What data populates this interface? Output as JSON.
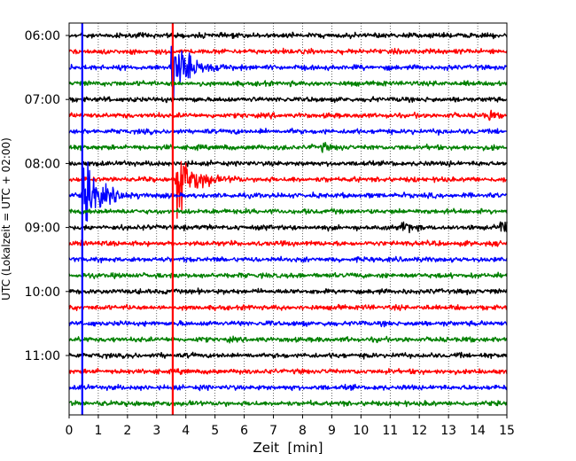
{
  "chart_data": {
    "type": "line",
    "title": "",
    "xlabel": "Zeit  [min]",
    "ylabel": "UTC (Lokalzeit = UTC + 02:00)",
    "xlim": [
      0,
      15
    ],
    "xticks": [
      "0",
      "1",
      "2",
      "3",
      "4",
      "5",
      "6",
      "7",
      "8",
      "9",
      "10",
      "11",
      "12",
      "13",
      "14",
      "15"
    ],
    "yticks": [
      "06:00",
      "07:00",
      "08:00",
      "09:00",
      "10:00",
      "11:00"
    ],
    "grid": "vertical dotted",
    "trace_color_cycle": [
      "#000000",
      "#ff0000",
      "#0000ff",
      "#008000"
    ],
    "trace_start_times": [
      "06:00",
      "06:15",
      "06:30",
      "06:45",
      "07:00",
      "07:15",
      "07:30",
      "07:45",
      "08:00",
      "08:15",
      "08:30",
      "08:45",
      "09:00",
      "09:15",
      "09:30",
      "09:45",
      "10:00",
      "10:15",
      "10:30",
      "10:45",
      "11:00",
      "11:15",
      "11:30",
      "11:45"
    ],
    "event_markers": [
      {
        "minute": 0.45,
        "color": "#0000ff"
      },
      {
        "minute": 3.55,
        "color": "#ff0000"
      }
    ],
    "events": [
      {
        "trace": "08:30",
        "minute": 0.5,
        "amplitude": "large"
      },
      {
        "trace": "08:15",
        "minute": 3.7,
        "amplitude": "large"
      },
      {
        "trace": "06:30",
        "minute": 3.5,
        "amplitude": "large"
      },
      {
        "trace": "09:00",
        "minute": 11.4,
        "amplitude": "medium"
      },
      {
        "trace": "09:00",
        "minute": 14.8,
        "amplitude": "medium"
      },
      {
        "trace": "07:15",
        "minute": 14.4,
        "amplitude": "small"
      },
      {
        "trace": "07:45",
        "minute": 8.7,
        "amplitude": "small"
      }
    ]
  }
}
